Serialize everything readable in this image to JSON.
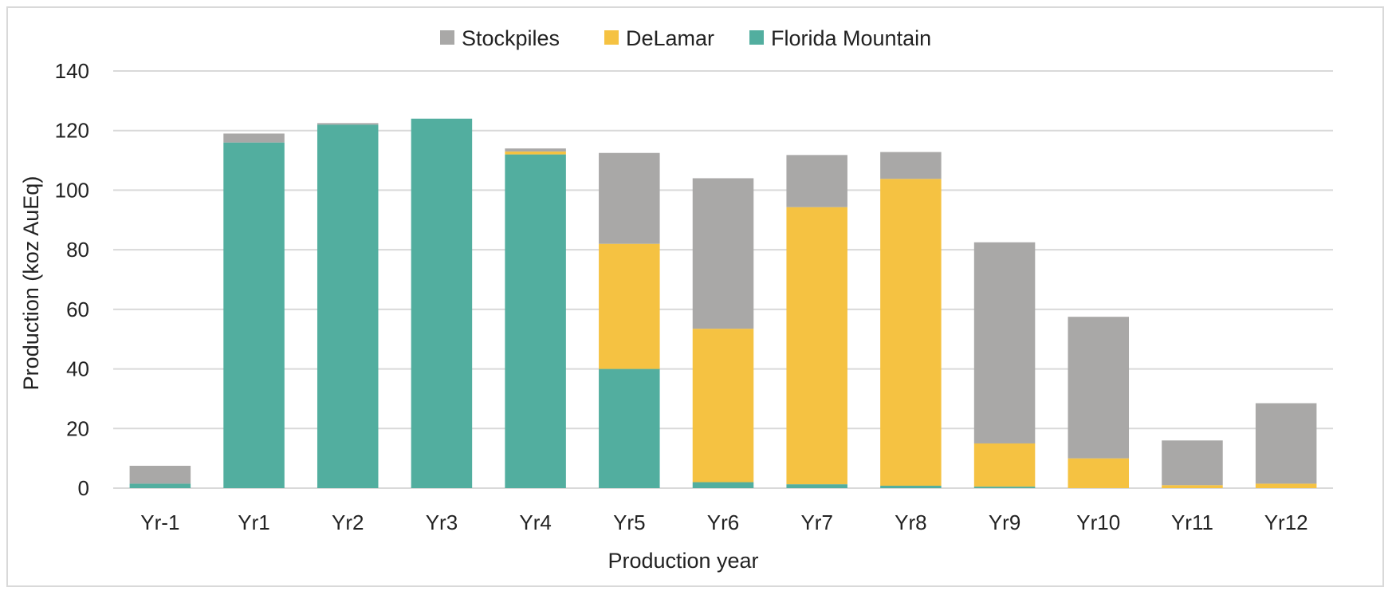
{
  "chart_data": {
    "type": "bar",
    "stacked": true,
    "title": "",
    "xlabel": "Production year",
    "ylabel": "Production (koz AuEq)",
    "ylim": [
      0,
      140
    ],
    "yticks": [
      0,
      20,
      40,
      60,
      80,
      100,
      120,
      140
    ],
    "grid": true,
    "legend_position": "top-center",
    "categories": [
      "Yr-1",
      "Yr1",
      "Yr2",
      "Yr3",
      "Yr4",
      "Yr5",
      "Yr6",
      "Yr7",
      "Yr8",
      "Yr9",
      "Yr10",
      "Yr11",
      "Yr12"
    ],
    "series": [
      {
        "name": "Florida Mountain",
        "color": "#52ae9f",
        "values": [
          1.5,
          116,
          122,
          124,
          112,
          40,
          2,
          1.3,
          0.8,
          0.5,
          0,
          0,
          0
        ]
      },
      {
        "name": "DeLamar",
        "color": "#f5c242",
        "values": [
          0,
          0,
          0,
          0,
          1,
          42,
          51.5,
          93,
          103,
          14.5,
          10,
          1,
          1.5
        ]
      },
      {
        "name": "Stockpiles",
        "color": "#a9a8a7",
        "values": [
          6,
          3,
          0.5,
          0,
          1,
          30.5,
          50.5,
          17.5,
          9,
          67.5,
          47.5,
          15,
          27
        ]
      }
    ],
    "legend_order": [
      "Stockpiles",
      "DeLamar",
      "Florida Mountain"
    ]
  }
}
